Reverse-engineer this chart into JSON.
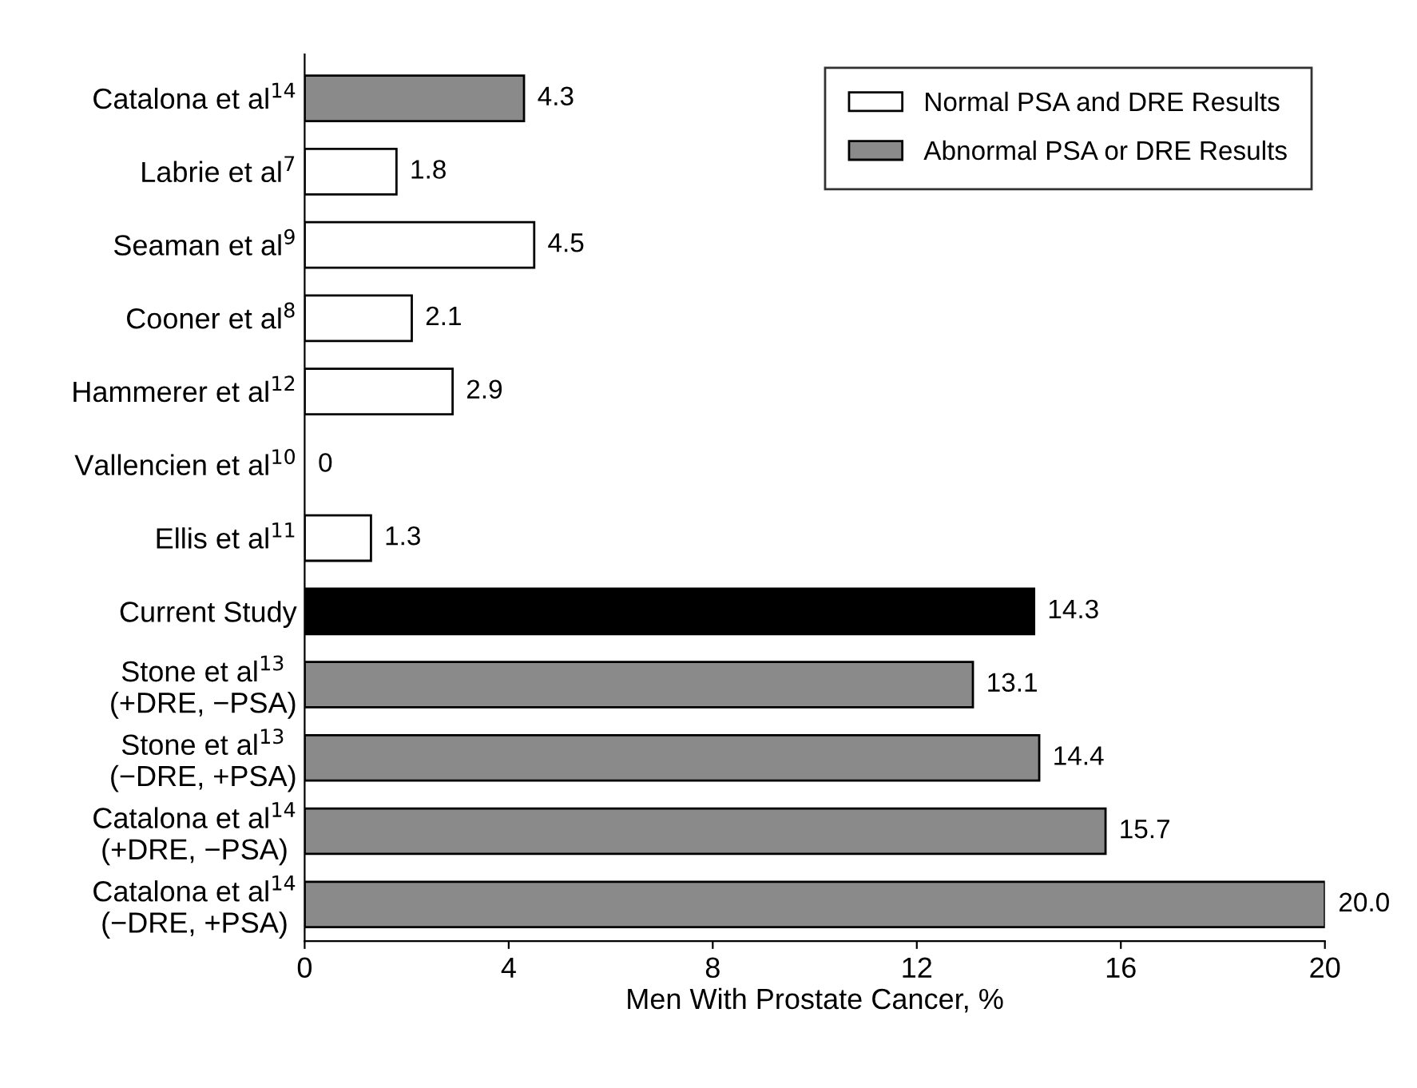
{
  "chart_data": {
    "type": "bar",
    "orientation": "horizontal",
    "categories": [
      "Catalona et al$^{14}$",
      "Labrie et al$^{7}$",
      "Seaman et al$^{9}$",
      "Cooner et al$^{8}$",
      "Hammerer et al$^{12}$",
      "Vallencien et al$^{10}$",
      "Ellis et al$^{11}$",
      "Current Study",
      "Stone et al$^{13}$\n(+DRE, −PSA)",
      "Stone et al$^{13}$\n(−DRE, +PSA)",
      "Catalona et al$^{14}$\n(+DRE, −PSA)",
      "Catalona et al$^{14}$\n(−DRE, +PSA)"
    ],
    "series": [
      {
        "name": "Normal PSA and DRE Results",
        "color": "#ffffff",
        "values": [
          null,
          1.8,
          4.5,
          2.1,
          2.9,
          0,
          1.3,
          null,
          null,
          null,
          null,
          null
        ],
        "value_labels": [
          null,
          "1.8",
          "4.5",
          "2.1",
          "2.9",
          "0",
          "1.3",
          null,
          null,
          null,
          null,
          null
        ]
      },
      {
        "name": "Abnormal PSA or DRE Results",
        "color": "#8a8a8a",
        "values": [
          4.3,
          null,
          null,
          null,
          null,
          null,
          null,
          null,
          13.1,
          14.4,
          15.7,
          20.0
        ],
        "value_labels": [
          "4.3",
          null,
          null,
          null,
          null,
          null,
          null,
          null,
          "13.1",
          "14.4",
          "15.7",
          "20.0"
        ]
      },
      {
        "color": "#000000",
        "values": [
          null,
          null,
          null,
          null,
          null,
          null,
          null,
          14.3,
          null,
          null,
          null,
          null
        ],
        "value_labels": [
          null,
          null,
          null,
          null,
          null,
          null,
          null,
          "14.3",
          null,
          null,
          null,
          null
        ]
      }
    ],
    "xlabel": "Men With Prostate Cancer, %",
    "xlim": [
      0,
      20
    ],
    "xticks": [
      0,
      4,
      8,
      12,
      16,
      20
    ],
    "grid": false,
    "legend": "top right"
  }
}
